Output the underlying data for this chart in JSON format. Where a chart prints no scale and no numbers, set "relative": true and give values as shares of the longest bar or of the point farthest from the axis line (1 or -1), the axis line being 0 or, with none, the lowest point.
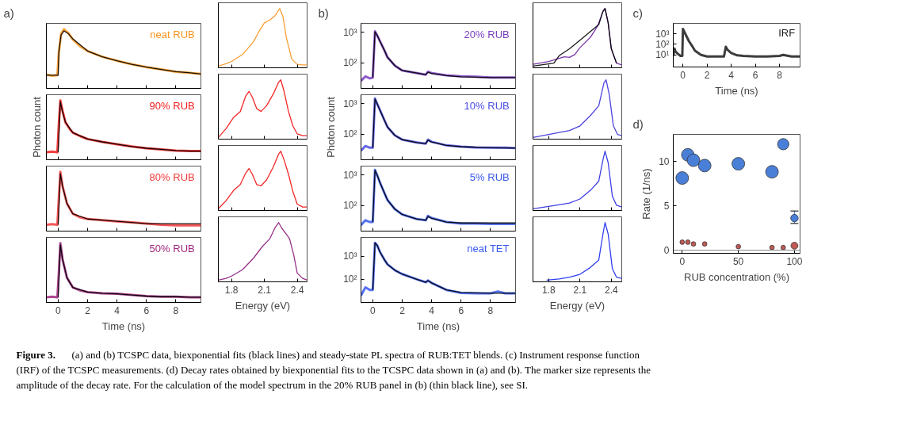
{
  "chart_data": [
    {
      "type": "line",
      "title": "a)",
      "xlim": [
        -0.8,
        9.7
      ],
      "xticks": [
        0,
        2,
        4,
        6,
        8
      ],
      "relative": true,
      "tick_labels": false,
      "series": [
        {
          "name": "neat RUB",
          "color": "#f7941d",
          "x": [
            -0.8,
            -0.4,
            -0.05,
            0.05,
            0.2,
            0.4,
            0.7,
            1,
            1.5,
            2,
            3,
            4,
            5,
            6,
            7,
            8,
            9,
            9.7
          ],
          "values": [
            0.21,
            0.19,
            0.2,
            0.6,
            0.92,
            1.0,
            0.93,
            0.82,
            0.7,
            0.62,
            0.52,
            0.45,
            0.39,
            0.34,
            0.3,
            0.26,
            0.24,
            0.22
          ]
        },
        {
          "color": "#000000",
          "x": [
            -0.8,
            0,
            0.05,
            0.2,
            0.4,
            0.7,
            1,
            2,
            3,
            4,
            5,
            6,
            7,
            8,
            9,
            9.7
          ],
          "values": [
            0.2,
            0.2,
            0.6,
            0.9,
            0.97,
            0.92,
            0.83,
            0.62,
            0.52,
            0.45,
            0.39,
            0.34,
            0.3,
            0.26,
            0.24,
            0.22
          ]
        }
      ]
    },
    {
      "type": "line",
      "relative": true,
      "xlim": [
        1.68,
        2.49
      ],
      "xticks": [
        1.8,
        2.1,
        2.4
      ],
      "tick_labels": false,
      "series": [
        {
          "color": "#f7941d",
          "x": [
            1.68,
            1.75,
            1.8,
            1.9,
            2.0,
            2.05,
            2.1,
            2.15,
            2.2,
            2.24,
            2.27,
            2.3,
            2.35,
            2.4,
            2.45,
            2.49
          ],
          "values": [
            0.0,
            0.04,
            0.08,
            0.2,
            0.42,
            0.6,
            0.75,
            0.8,
            0.88,
            1.0,
            0.86,
            0.5,
            0.12,
            0.03,
            0.02,
            0.02
          ]
        }
      ]
    },
    {
      "type": "line",
      "xlim": [
        -0.8,
        9.7
      ],
      "xticks": [
        0,
        2,
        4,
        6,
        8
      ],
      "relative": true,
      "tick_labels": false,
      "ylabel": "Photon count",
      "series": [
        {
          "name": "90% RUB",
          "color": "#f21c1c",
          "x": [
            -0.8,
            -0.4,
            -0.05,
            0.05,
            0.15,
            0.3,
            0.5,
            0.8,
            1,
            1.5,
            2,
            3,
            4,
            5,
            6,
            7,
            8,
            9,
            9.7
          ],
          "values": [
            0.1,
            0.11,
            0.1,
            0.6,
            1.0,
            0.82,
            0.62,
            0.5,
            0.44,
            0.38,
            0.33,
            0.28,
            0.24,
            0.2,
            0.17,
            0.15,
            0.13,
            0.12,
            0.12
          ]
        },
        {
          "color": "#000000",
          "x": [
            0,
            0.15,
            0.3,
            0.5,
            1,
            2,
            3,
            4,
            5,
            6,
            7,
            8,
            9,
            9.7
          ],
          "values": [
            0.1,
            0.98,
            0.8,
            0.62,
            0.44,
            0.33,
            0.28,
            0.24,
            0.2,
            0.17,
            0.15,
            0.13,
            0.12,
            0.12
          ]
        }
      ]
    },
    {
      "type": "line",
      "relative": true,
      "xlim": [
        1.68,
        2.49
      ],
      "xticks": [
        1.8,
        2.1,
        2.4
      ],
      "tick_labels": false,
      "series": [
        {
          "color": "#f20f0f",
          "x": [
            1.68,
            1.75,
            1.82,
            1.88,
            1.93,
            1.96,
            1.99,
            2.03,
            2.07,
            2.12,
            2.18,
            2.23,
            2.25,
            2.28,
            2.32,
            2.36,
            2.4,
            2.45,
            2.49
          ],
          "values": [
            0.0,
            0.15,
            0.35,
            0.45,
            0.72,
            0.8,
            0.7,
            0.5,
            0.45,
            0.55,
            0.75,
            0.96,
            1.0,
            0.8,
            0.45,
            0.2,
            0.06,
            0.03,
            0.03
          ]
        }
      ]
    },
    {
      "type": "line",
      "xlim": [
        -0.8,
        9.7
      ],
      "xticks": [
        0,
        2,
        4,
        6,
        8
      ],
      "relative": true,
      "tick_labels": false,
      "series": [
        {
          "name": "80% RUB",
          "color": "#f33a3a",
          "x": [
            -0.8,
            -0.4,
            -0.05,
            0.05,
            0.15,
            0.3,
            0.6,
            1,
            1.5,
            2,
            3,
            4,
            5,
            6,
            7,
            8,
            9,
            9.7
          ],
          "values": [
            0.08,
            0.09,
            0.08,
            0.55,
            1.0,
            0.75,
            0.45,
            0.27,
            0.21,
            0.18,
            0.16,
            0.14,
            0.12,
            0.1,
            0.08,
            0.07,
            0.07,
            0.07
          ]
        },
        {
          "color": "#000000",
          "x": [
            0,
            0.15,
            0.3,
            0.6,
            1,
            2,
            3,
            4,
            5,
            6,
            7,
            8,
            9,
            9.7
          ],
          "values": [
            0.08,
            0.97,
            0.75,
            0.45,
            0.27,
            0.18,
            0.16,
            0.14,
            0.12,
            0.1,
            0.1,
            0.1,
            0.1,
            0.1
          ]
        }
      ]
    },
    {
      "type": "line",
      "relative": true,
      "xlim": [
        1.68,
        2.49
      ],
      "xticks": [
        1.8,
        2.1,
        2.4
      ],
      "tick_labels": false,
      "series": [
        {
          "color": "#f21010",
          "x": [
            1.68,
            1.75,
            1.82,
            1.88,
            1.93,
            1.96,
            1.99,
            2.03,
            2.07,
            2.12,
            2.18,
            2.23,
            2.25,
            2.28,
            2.32,
            2.36,
            2.4,
            2.45,
            2.49
          ],
          "values": [
            0.0,
            0.14,
            0.32,
            0.42,
            0.62,
            0.7,
            0.6,
            0.42,
            0.4,
            0.5,
            0.72,
            0.95,
            1.0,
            0.85,
            0.6,
            0.3,
            0.08,
            0.03,
            0.03
          ]
        }
      ]
    },
    {
      "type": "line",
      "xlim": [
        -0.8,
        9.7
      ],
      "xticks": [
        0,
        2,
        4,
        6,
        8
      ],
      "relative": true,
      "tick_labels": "x",
      "xlabel": "Time (ns)",
      "series": [
        {
          "name": "50% RUB",
          "color": "#a0287f",
          "x": [
            -0.8,
            -0.4,
            -0.05,
            0.05,
            0.15,
            0.3,
            0.6,
            1,
            1.5,
            2,
            3,
            4,
            5,
            6,
            7,
            8,
            9,
            9.7
          ],
          "values": [
            0.06,
            0.07,
            0.06,
            0.5,
            1.0,
            0.72,
            0.4,
            0.23,
            0.18,
            0.15,
            0.13,
            0.12,
            0.1,
            0.08,
            0.07,
            0.07,
            0.06,
            0.06
          ]
        },
        {
          "color": "#000000",
          "x": [
            0,
            0.15,
            0.3,
            0.6,
            1,
            2,
            3,
            4,
            5,
            6,
            7,
            8,
            9,
            9.7
          ],
          "values": [
            0.06,
            0.97,
            0.72,
            0.4,
            0.23,
            0.15,
            0.13,
            0.12,
            0.1,
            0.08,
            0.07,
            0.07,
            0.06,
            0.06
          ]
        }
      ]
    },
    {
      "type": "line",
      "relative": true,
      "xlim": [
        1.68,
        2.49
      ],
      "xticks": [
        1.8,
        2.1,
        2.4
      ],
      "tick_labels": "x",
      "xlabel": "Energy (eV)",
      "series": [
        {
          "color": "#8b1a7a",
          "x": [
            1.68,
            1.75,
            1.8,
            1.9,
            2.0,
            2.08,
            2.15,
            2.2,
            2.23,
            2.26,
            2.3,
            2.33,
            2.37,
            2.4,
            2.45,
            2.49
          ],
          "values": [
            0.0,
            0.03,
            0.07,
            0.18,
            0.38,
            0.58,
            0.72,
            0.92,
            1.0,
            0.9,
            0.8,
            0.72,
            0.42,
            0.12,
            0.03,
            0.0
          ]
        }
      ]
    },
    {
      "type": "line",
      "title": "b)",
      "log": true,
      "xlim": [
        -0.8,
        9.7
      ],
      "xticks": [
        0,
        2,
        4,
        6,
        8
      ],
      "ylim": [
        14,
        2000
      ],
      "yticks": [
        {
          "value": 100,
          "label": "10²"
        },
        {
          "value": 1000,
          "label": "10³"
        }
      ],
      "tick_labels": "y",
      "series": [
        {
          "name": "20% RUB",
          "color": "#7a3fc0",
          "x": [
            -0.8,
            -0.5,
            -0.2,
            0,
            0.15,
            0.3,
            0.5,
            0.8,
            1,
            1.5,
            2,
            3,
            3.6,
            3.75,
            4,
            5,
            6,
            7,
            8,
            9,
            9.7
          ],
          "values": [
            25,
            35,
            30,
            32,
            1100,
            800,
            500,
            250,
            150,
            80,
            55,
            45,
            40,
            50,
            45,
            38,
            35,
            34,
            32,
            32,
            32
          ]
        },
        {
          "color": "#000000",
          "x": [
            0,
            0.15,
            0.3,
            0.5,
            0.8,
            1,
            1.5,
            2,
            3,
            3.6,
            3.75,
            4,
            5,
            6,
            8,
            9.7
          ],
          "values": [
            32,
            1050,
            800,
            500,
            250,
            150,
            80,
            55,
            45,
            40,
            48,
            44,
            37,
            34,
            32,
            32
          ]
        }
      ]
    },
    {
      "type": "line",
      "relative": true,
      "xlim": [
        1.65,
        2.5
      ],
      "xticks": [
        1.8,
        2.1,
        2.4
      ],
      "tick_labels": false,
      "series": [
        {
          "color": "#6a1fa0",
          "x": [
            1.65,
            1.8,
            1.95,
            2.0,
            2.05,
            2.1,
            2.2,
            2.27,
            2.32,
            2.34,
            2.37,
            2.4,
            2.45,
            2.5
          ],
          "values": [
            0.03,
            0.08,
            0.16,
            0.15,
            0.2,
            0.32,
            0.5,
            0.7,
            0.95,
            1.0,
            0.75,
            0.3,
            0.05,
            0.02
          ]
        },
        {
          "color": "#000000",
          "x": [
            1.65,
            1.85,
            1.9,
            2.0,
            2.1,
            2.2,
            2.28,
            2.32,
            2.34,
            2.37,
            2.4,
            2.45
          ],
          "values": [
            0.0,
            0.05,
            0.18,
            0.3,
            0.45,
            0.6,
            0.72,
            0.95,
            1.0,
            0.75,
            0.3,
            0.05
          ]
        }
      ]
    },
    {
      "type": "line",
      "log": true,
      "xlim": [
        -0.8,
        9.7
      ],
      "xticks": [
        0,
        2,
        4,
        6,
        8
      ],
      "ylim": [
        14,
        2000
      ],
      "yticks": [
        {
          "value": 100,
          "label": "10²"
        },
        {
          "value": 1000,
          "label": "10³"
        }
      ],
      "tick_labels": "y",
      "ylabel": "Photon count",
      "series": [
        {
          "name": "10% RUB",
          "color": "#4a4de0",
          "x": [
            -0.8,
            -0.5,
            -0.2,
            0,
            0.15,
            0.3,
            0.5,
            0.8,
            1,
            1.5,
            2,
            3,
            3.6,
            3.75,
            4,
            5,
            6,
            7,
            8,
            9,
            9.7
          ],
          "values": [
            28,
            40,
            35,
            35,
            1500,
            1000,
            600,
            280,
            170,
            90,
            65,
            52,
            48,
            65,
            55,
            42,
            38,
            36,
            35,
            35,
            34
          ]
        },
        {
          "color": "#000000",
          "x": [
            0,
            0.15,
            0.3,
            0.5,
            0.8,
            1,
            1.5,
            2,
            3,
            3.6,
            3.75,
            4,
            5,
            6,
            8,
            9.7
          ],
          "values": [
            35,
            1450,
            1000,
            600,
            280,
            170,
            90,
            65,
            52,
            48,
            62,
            54,
            42,
            38,
            35,
            34
          ]
        }
      ]
    },
    {
      "type": "line",
      "relative": true,
      "xlim": [
        1.65,
        2.5
      ],
      "xticks": [
        1.8,
        2.1,
        2.4
      ],
      "tick_labels": false,
      "series": [
        {
          "color": "#3a30d8",
          "x": [
            1.65,
            1.8,
            2.0,
            2.1,
            2.2,
            2.28,
            2.33,
            2.35,
            2.38,
            2.42,
            2.46,
            2.5
          ],
          "values": [
            0.0,
            0.05,
            0.12,
            0.2,
            0.38,
            0.55,
            0.95,
            1.0,
            0.75,
            0.2,
            0.05,
            0.03
          ]
        }
      ]
    },
    {
      "type": "line",
      "log": true,
      "xlim": [
        -0.8,
        9.7
      ],
      "xticks": [
        0,
        2,
        4,
        6,
        8
      ],
      "ylim": [
        14,
        2000
      ],
      "yticks": [
        {
          "value": 100,
          "label": "10²"
        },
        {
          "value": 1000,
          "label": "10³"
        }
      ],
      "tick_labels": "y",
      "series": [
        {
          "name": "5% RUB",
          "color": "#3a5ae8",
          "x": [
            -0.8,
            -0.5,
            -0.2,
            0,
            0.15,
            0.3,
            0.5,
            0.8,
            1,
            1.5,
            2,
            3,
            3.6,
            3.75,
            4,
            5,
            6,
            7,
            8,
            9,
            9.7
          ],
          "values": [
            22,
            32,
            28,
            28,
            1500,
            1000,
            550,
            250,
            150,
            75,
            50,
            35,
            32,
            45,
            38,
            28,
            25,
            25,
            24,
            24,
            24
          ]
        },
        {
          "color": "#000000",
          "x": [
            0,
            0.15,
            0.3,
            0.5,
            0.8,
            1,
            1.5,
            2,
            3,
            3.6,
            3.75,
            4,
            5,
            6,
            8,
            9.7
          ],
          "values": [
            28,
            1450,
            1000,
            550,
            250,
            150,
            75,
            50,
            35,
            32,
            43,
            37,
            28,
            26,
            26,
            26
          ]
        }
      ]
    },
    {
      "type": "line",
      "relative": true,
      "xlim": [
        1.65,
        2.5
      ],
      "xticks": [
        1.8,
        2.1,
        2.4
      ],
      "tick_labels": false,
      "series": [
        {
          "color": "#2a2ae0",
          "x": [
            1.65,
            1.8,
            2.0,
            2.1,
            2.2,
            2.28,
            2.32,
            2.34,
            2.37,
            2.41,
            2.45,
            2.5
          ],
          "values": [
            0.0,
            0.04,
            0.1,
            0.17,
            0.32,
            0.48,
            0.85,
            1.0,
            0.8,
            0.22,
            0.06,
            0.03
          ]
        }
      ]
    },
    {
      "type": "line",
      "log": true,
      "xlim": [
        -0.8,
        9.7
      ],
      "xticks": [
        0,
        2,
        4,
        6,
        8
      ],
      "ylim": [
        10,
        6600
      ],
      "yticks": [
        {
          "value": 100,
          "label": "10²"
        },
        {
          "value": 1000,
          "label": "10³"
        }
      ],
      "xlabel": "Time (ns)",
      "series": [
        {
          "name": "neat TET",
          "color": "#3a5af0",
          "x": [
            -0.8,
            -0.5,
            -0.2,
            0,
            0.15,
            0.3,
            0.5,
            0.8,
            1,
            1.5,
            2,
            3,
            3.6,
            3.75,
            4,
            5,
            6,
            7,
            8,
            8.5,
            9,
            9.7
          ],
          "values": [
            20,
            45,
            35,
            35,
            3900,
            3000,
            1500,
            700,
            450,
            250,
            170,
            100,
            75,
            90,
            70,
            35,
            26,
            25,
            25,
            30,
            25,
            25
          ]
        },
        {
          "color": "#000000",
          "x": [
            0,
            0.15,
            0.3,
            0.5,
            0.8,
            1,
            1.5,
            2,
            3,
            3.6,
            3.75,
            4,
            5,
            6,
            8,
            9.7
          ],
          "values": [
            35,
            3800,
            3000,
            1500,
            700,
            450,
            250,
            170,
            100,
            75,
            88,
            70,
            35,
            27,
            25,
            25
          ]
        }
      ]
    },
    {
      "type": "line",
      "relative": true,
      "xlim": [
        1.65,
        2.5
      ],
      "xticks": [
        1.8,
        2.1,
        2.4
      ],
      "tick_labels": "x",
      "xlabel": "Energy (eV)",
      "series": [
        {
          "color": "#1a2af0",
          "x": [
            1.78,
            1.9,
            2.0,
            2.1,
            2.2,
            2.28,
            2.32,
            2.34,
            2.37,
            2.41,
            2.45,
            2.5
          ],
          "values": [
            0.0,
            0.02,
            0.05,
            0.1,
            0.22,
            0.35,
            0.8,
            1.0,
            0.8,
            0.2,
            0.05,
            0.03
          ]
        }
      ]
    },
    {
      "type": "line",
      "title": "c)",
      "log": true,
      "xlim": [
        -0.8,
        9.7
      ],
      "xticks": [
        0,
        2,
        4,
        6,
        8
      ],
      "ylim": [
        0.7,
        10000
      ],
      "yticks": [
        {
          "value": 10,
          "label": "10¹"
        },
        {
          "value": 100,
          "label": "10²"
        },
        {
          "value": 1000,
          "label": "10³"
        }
      ],
      "xlabel": "Time (ns)",
      "series": [
        {
          "name": "IRF",
          "color": "#1a1a1a",
          "x": [
            -0.8,
            -0.7,
            -0.6,
            -0.4,
            -0.2,
            -0.05,
            0,
            0.2,
            0.5,
            0.8,
            1,
            1.5,
            2,
            3,
            3.4,
            3.55,
            3.7,
            4,
            4.5,
            5,
            6,
            7,
            8,
            8.3,
            9,
            9.7
          ],
          "values": [
            8,
            40,
            20,
            12,
            8,
            8,
            3000,
            1000,
            200,
            60,
            25,
            10,
            7,
            7,
            7,
            60,
            30,
            15,
            9,
            8,
            7,
            7,
            8,
            10,
            7,
            7
          ]
        }
      ]
    },
    {
      "type": "bubble",
      "title": "d)",
      "xlim": [
        -8,
        105
      ],
      "xticks": [
        0,
        50,
        100
      ],
      "ylim": [
        -0.35,
        13
      ],
      "yticks": [
        0,
        5,
        10
      ],
      "xlabel": "RUB concentration (%)",
      "ylabel": "Rate (1/ns)",
      "ref_lines": [
        {
          "axis": "y",
          "value": 0,
          "color": "#888888"
        }
      ],
      "series": [
        {
          "color": "#4a7fd8",
          "x": [
            0,
            5,
            10,
            20,
            50,
            80,
            90,
            100
          ],
          "values": [
            8.1,
            10.7,
            10.1,
            9.5,
            9.7,
            8.8,
            11.9,
            3.6
          ],
          "sizes": [
            1,
            1,
            1,
            1,
            1,
            1,
            0.8,
            0.35
          ],
          "errors": [
            null,
            null,
            null,
            null,
            null,
            null,
            null,
            [
              3.0,
              4.4
            ]
          ]
        },
        {
          "color": "#c05a55",
          "x": [
            0,
            5,
            10,
            20,
            50,
            80,
            90,
            100
          ],
          "values": [
            0.9,
            0.9,
            0.7,
            0.7,
            0.4,
            0.3,
            0.3,
            0.5
          ],
          "sizes": [
            0.13,
            0.13,
            0.13,
            0.13,
            0.13,
            0.13,
            0.13,
            0.3
          ]
        }
      ]
    },
    {
      "type": "other",
      "title": "Figure 3.",
      "annotations": [
        "(a) and (b) TCSPC data, biexponential fits (black lines) and steady-state PL spectra of RUB:TET blends. (c) Instrument response function (IRF) of the TCSPC measurements. (d) Decay rates obtained by biexponential fits to the TCSPC data shown in (a) and (b). The marker size represents the amplitude of the decay rate. For the calculation of the model spectrum in the 20% RUB panel in (b) (thin black line), see SI."
      ]
    }
  ]
}
